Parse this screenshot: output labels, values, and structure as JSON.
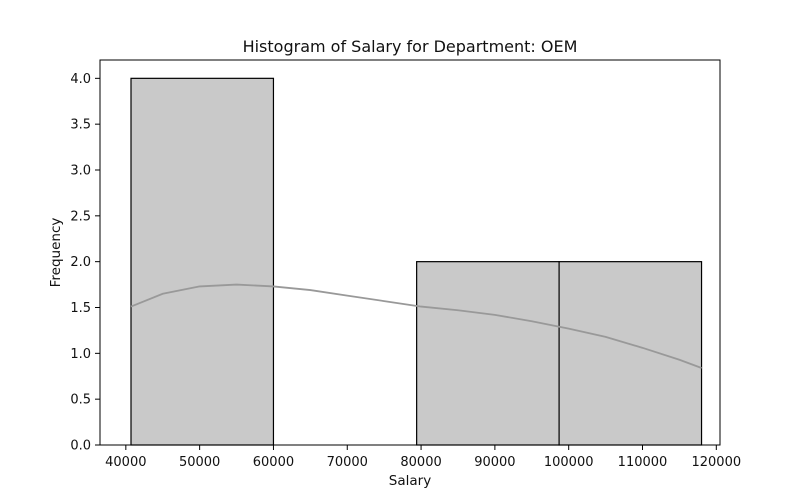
{
  "chart_data": {
    "type": "bar",
    "title": "Histogram of Salary for Department: OEM",
    "xlabel": "Salary",
    "ylabel": "Frequency",
    "xlim": [
      36500,
      120500
    ],
    "ylim": [
      0,
      4.2
    ],
    "xticks": [
      40000,
      50000,
      60000,
      70000,
      80000,
      90000,
      100000,
      110000,
      120000
    ],
    "yticks": [
      "0.0",
      "0.5",
      "1.0",
      "1.5",
      "2.0",
      "2.5",
      "3.0",
      "3.5",
      "4.0"
    ],
    "bins": [
      {
        "x0": 40700,
        "x1": 60000,
        "value": 4
      },
      {
        "x0": 60000,
        "x1": 79400,
        "value": 0
      },
      {
        "x0": 79400,
        "x1": 98700,
        "value": 2
      },
      {
        "x0": 98700,
        "x1": 118000,
        "value": 2
      }
    ],
    "kde": [
      {
        "x": 40700,
        "y": 1.51
      },
      {
        "x": 45000,
        "y": 1.65
      },
      {
        "x": 50000,
        "y": 1.73
      },
      {
        "x": 55000,
        "y": 1.75
      },
      {
        "x": 60000,
        "y": 1.73
      },
      {
        "x": 65000,
        "y": 1.69
      },
      {
        "x": 70000,
        "y": 1.63
      },
      {
        "x": 75000,
        "y": 1.57
      },
      {
        "x": 80000,
        "y": 1.51
      },
      {
        "x": 85000,
        "y": 1.47
      },
      {
        "x": 90000,
        "y": 1.42
      },
      {
        "x": 95000,
        "y": 1.35
      },
      {
        "x": 100000,
        "y": 1.27
      },
      {
        "x": 105000,
        "y": 1.18
      },
      {
        "x": 110000,
        "y": 1.06
      },
      {
        "x": 115000,
        "y": 0.93
      },
      {
        "x": 118000,
        "y": 0.84
      }
    ],
    "grid": false,
    "colors": {
      "bar_fill": "#c9c9c9",
      "bar_edge": "#000000",
      "kde_line": "#999999",
      "axis": "#000000"
    }
  }
}
